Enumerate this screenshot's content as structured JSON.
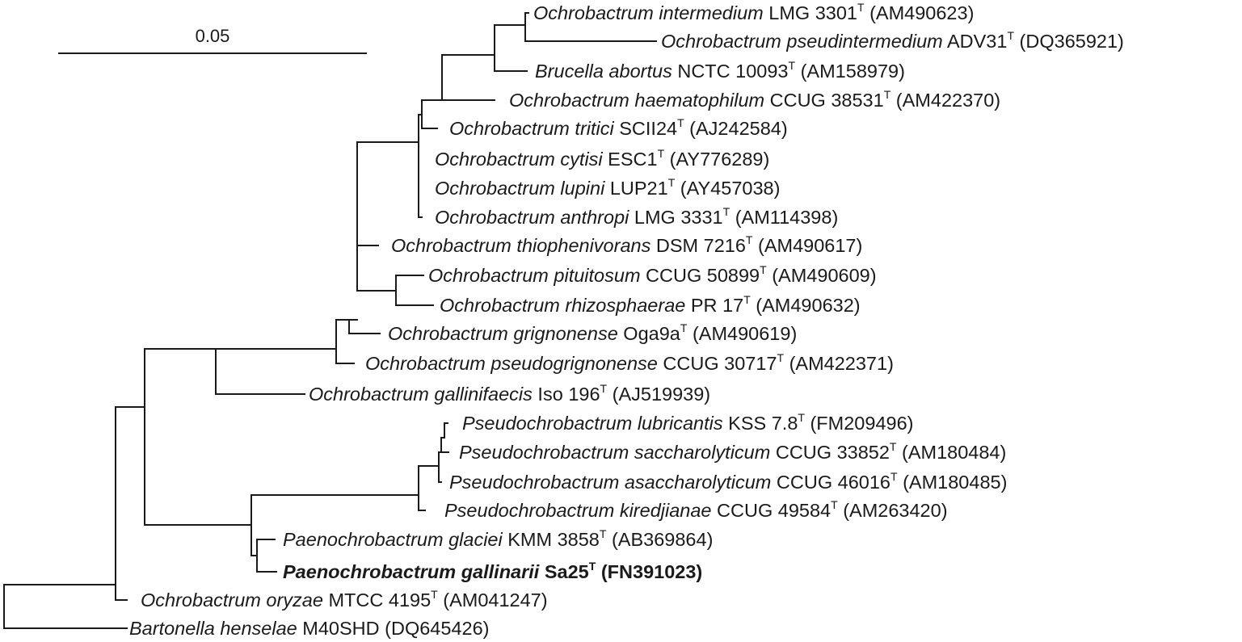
{
  "scale_bar": {
    "label": "0.05"
  },
  "taxa": [
    {
      "id": "t1",
      "genus": "Ochrobactrum intermedium",
      "strain": "LMG 3301",
      "sup": "T",
      "accession": "(AM490623)",
      "bold": false
    },
    {
      "id": "t2",
      "genus": "Ochrobactrum pseudintermedium",
      "strain": "ADV31",
      "sup": "T",
      "accession": "(DQ365921)",
      "bold": false
    },
    {
      "id": "t3",
      "genus": "Brucella abortus",
      "strain": "NCTC 10093",
      "sup": "T",
      "accession": "(AM158979)",
      "bold": false
    },
    {
      "id": "t4",
      "genus": "Ochrobactrum haematophilum",
      "strain": "CCUG 38531",
      "sup": "T",
      "accession": "(AM422370)",
      "bold": false
    },
    {
      "id": "t5",
      "genus": "Ochrobactrum tritici",
      "strain": "SCII24",
      "sup": "T",
      "accession": "(AJ242584)",
      "bold": false
    },
    {
      "id": "t6",
      "genus": "Ochrobactrum cytisi",
      "strain": "ESC1",
      "sup": "T",
      "accession": "(AY776289)",
      "bold": false
    },
    {
      "id": "t7",
      "genus": "Ochrobactrum lupini",
      "strain": "LUP21",
      "sup": "T",
      "accession": "(AY457038)",
      "bold": false
    },
    {
      "id": "t8",
      "genus": "Ochrobactrum anthropi",
      "strain": "LMG 3331",
      "sup": "T",
      "accession": "(AM114398)",
      "bold": false
    },
    {
      "id": "t9",
      "genus": "Ochrobactrum thiophenivorans",
      "strain": "DSM 7216",
      "sup": "T",
      "accession": "(AM490617)",
      "bold": false
    },
    {
      "id": "t10",
      "genus": "Ochrobactrum pituitosum",
      "strain": "CCUG 50899",
      "sup": "T",
      "accession": "(AM490609)",
      "bold": false
    },
    {
      "id": "t11",
      "genus": "Ochrobactrum rhizosphaerae",
      "strain": "PR 17",
      "sup": "T",
      "accession": "(AM490632)",
      "bold": false
    },
    {
      "id": "t12",
      "genus": "Ochrobactrum grignonense",
      "strain": "Oga9a",
      "sup": "T",
      "accession": "(AM490619)",
      "bold": false
    },
    {
      "id": "t13",
      "genus": "Ochrobactrum pseudogrignonense",
      "strain": "CCUG 30717",
      "sup": "T",
      "accession": "(AM422371)",
      "bold": false
    },
    {
      "id": "t14",
      "genus": "Ochrobactrum gallinifaecis",
      "strain": "Iso 196",
      "sup": "T",
      "accession": "(AJ519939)",
      "bold": false
    },
    {
      "id": "t15",
      "genus": "Pseudochrobactrum lubricantis",
      "strain": "KSS 7.8",
      "sup": "T",
      "accession": "(FM209496)",
      "bold": false
    },
    {
      "id": "t16",
      "genus": "Pseudochrobactrum saccharolyticum",
      "strain": "CCUG 33852",
      "sup": "T",
      "accession": "(AM180484)",
      "bold": false
    },
    {
      "id": "t17",
      "genus": "Pseudochrobactrum asaccharolyticum",
      "strain": "CCUG 46016",
      "sup": "T",
      "accession": "(AM180485)",
      "bold": false
    },
    {
      "id": "t18",
      "genus": "Pseudochrobactrum kiredjianae",
      "strain": "CCUG 49584",
      "sup": "T",
      "accession": "(AM263420)",
      "bold": false
    },
    {
      "id": "t19",
      "genus": "Paenochrobactrum glaciei",
      "strain": "KMM 3858",
      "sup": "T",
      "accession": "(AB369864)",
      "bold": false
    },
    {
      "id": "t20",
      "genus": "Paenochrobactrum gallinarii",
      "strain": "Sa25",
      "sup": "T",
      "accession": "(FN391023)",
      "bold": true
    },
    {
      "id": "t21",
      "genus": "Ochrobactrum oryzae",
      "strain": "MTCC 4195",
      "sup": "T",
      "accession": "(AM041247)",
      "bold": false
    },
    {
      "id": "t22",
      "genus": "Bartonella henselae",
      "strain": "M40SHD",
      "sup": "",
      "accession": "(DQ645426)",
      "bold": false
    }
  ]
}
